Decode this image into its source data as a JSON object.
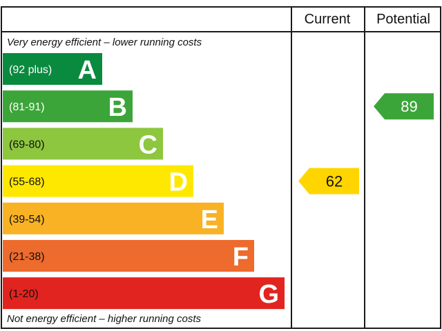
{
  "headers": {
    "current": "Current",
    "potential": "Potential"
  },
  "notes": {
    "top": "Very energy efficient – lower running costs",
    "bottom": "Not energy efficient – higher running costs"
  },
  "colors": {
    "current_arrow": "#ffd500",
    "potential_arrow": "#3ca539"
  },
  "chart_data": {
    "type": "bar",
    "bands": [
      {
        "letter": "A",
        "range": "(92 plus)",
        "color": "#0a8a3f",
        "range_color": "#ffffff"
      },
      {
        "letter": "B",
        "range": "(81-91)",
        "color": "#3ca539",
        "range_color": "#ffffff"
      },
      {
        "letter": "C",
        "range": "(69-80)",
        "color": "#8dc63f",
        "range_color": "#111111"
      },
      {
        "letter": "D",
        "range": "(55-68)",
        "color": "#ffe800",
        "range_color": "#111111"
      },
      {
        "letter": "E",
        "range": "(39-54)",
        "color": "#f8b224",
        "range_color": "#111111"
      },
      {
        "letter": "F",
        "range": "(21-38)",
        "color": "#ec6b2d",
        "range_color": "#111111"
      },
      {
        "letter": "G",
        "range": "(1-20)",
        "color": "#e1241f",
        "range_color": "#111111"
      }
    ],
    "current": {
      "value": 62,
      "band": "D",
      "label": "62"
    },
    "potential": {
      "value": 89,
      "band": "B",
      "label": "89"
    }
  }
}
